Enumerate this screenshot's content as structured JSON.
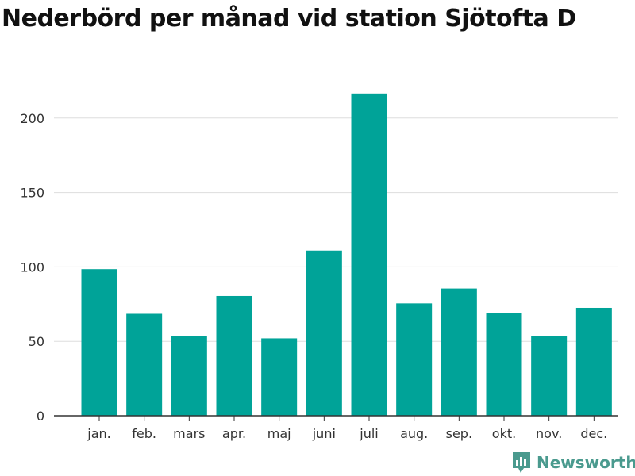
{
  "title": "Nederbörd per månad vid station Sjötofta D",
  "brand": {
    "name": "Newsworthy",
    "icon": "bar-chart-logo-icon"
  },
  "colors": {
    "bar": "#00a398",
    "grid": "#dddddd",
    "axis": "#333333",
    "brand": "#4a9a8e"
  },
  "chart_data": {
    "type": "bar",
    "title": "Nederbörd per månad vid station Sjötofta D",
    "xlabel": "",
    "ylabel": "",
    "categories": [
      "jan.",
      "feb.",
      "mars",
      "apr.",
      "maj",
      "juni",
      "juli",
      "aug.",
      "sep.",
      "okt.",
      "nov.",
      "dec."
    ],
    "values": [
      98.5,
      68.5,
      53.5,
      80.5,
      52,
      111,
      216.5,
      75.5,
      85.5,
      69,
      53.5,
      72.5
    ],
    "ylim": [
      0,
      230
    ],
    "yticks": [
      0,
      50,
      100,
      150,
      200
    ],
    "grid": true,
    "legend": "none"
  }
}
